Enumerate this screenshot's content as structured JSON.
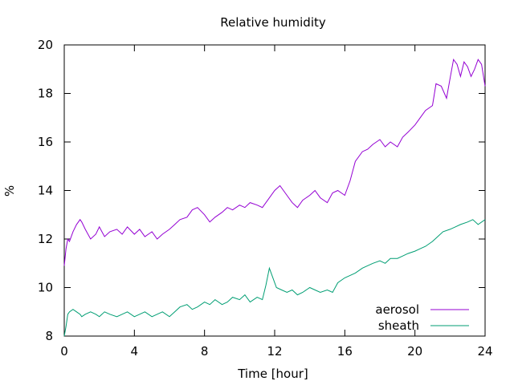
{
  "chart_data": {
    "type": "line",
    "title": "Relative humidity",
    "xlabel": "Time [hour]",
    "ylabel": "%",
    "xlim": [
      0,
      24
    ],
    "ylim": [
      8,
      20
    ],
    "xticks": [
      0,
      4,
      8,
      12,
      16,
      20,
      24
    ],
    "yticks": [
      8,
      10,
      12,
      14,
      16,
      18,
      20
    ],
    "grid": false,
    "legend_position": "bottom-right",
    "series": [
      {
        "name": "aerosol",
        "color": "#9400d3",
        "x": [
          0,
          0.1,
          0.2,
          0.3,
          0.5,
          0.7,
          0.9,
          1.0,
          1.2,
          1.5,
          1.8,
          2.0,
          2.3,
          2.6,
          3.0,
          3.3,
          3.6,
          4.0,
          4.3,
          4.6,
          5.0,
          5.3,
          5.6,
          6.0,
          6.3,
          6.6,
          7.0,
          7.3,
          7.6,
          8.0,
          8.3,
          8.6,
          9.0,
          9.3,
          9.6,
          10.0,
          10.3,
          10.6,
          11.0,
          11.3,
          11.6,
          12.0,
          12.3,
          12.6,
          13.0,
          13.3,
          13.6,
          14.0,
          14.3,
          14.6,
          15.0,
          15.3,
          15.6,
          16.0,
          16.3,
          16.6,
          17.0,
          17.3,
          17.6,
          18.0,
          18.3,
          18.6,
          19.0,
          19.3,
          19.6,
          20.0,
          20.3,
          20.6,
          21.0,
          21.2,
          21.5,
          21.8,
          22.0,
          22.2,
          22.4,
          22.6,
          22.8,
          23.0,
          23.2,
          23.4,
          23.6,
          23.8,
          24.0
        ],
        "y": [
          10.9,
          11.6,
          12.0,
          11.9,
          12.3,
          12.6,
          12.8,
          12.7,
          12.4,
          12.0,
          12.2,
          12.5,
          12.1,
          12.3,
          12.4,
          12.2,
          12.5,
          12.2,
          12.4,
          12.1,
          12.3,
          12.0,
          12.2,
          12.4,
          12.6,
          12.8,
          12.9,
          13.2,
          13.3,
          13.0,
          12.7,
          12.9,
          13.1,
          13.3,
          13.2,
          13.4,
          13.3,
          13.5,
          13.4,
          13.3,
          13.6,
          14.0,
          14.2,
          13.9,
          13.5,
          13.3,
          13.6,
          13.8,
          14.0,
          13.7,
          13.5,
          13.9,
          14.0,
          13.8,
          14.4,
          15.2,
          15.6,
          15.7,
          15.9,
          16.1,
          15.8,
          16.0,
          15.8,
          16.2,
          16.4,
          16.7,
          17.0,
          17.3,
          17.5,
          18.4,
          18.3,
          17.8,
          18.6,
          19.4,
          19.2,
          18.7,
          19.3,
          19.1,
          18.7,
          19.0,
          19.4,
          19.2,
          18.3
        ]
      },
      {
        "name": "sheath",
        "color": "#009e73",
        "x": [
          0,
          0.1,
          0.2,
          0.3,
          0.5,
          0.7,
          0.9,
          1.0,
          1.2,
          1.5,
          1.8,
          2.0,
          2.3,
          2.6,
          3.0,
          3.3,
          3.6,
          4.0,
          4.3,
          4.6,
          5.0,
          5.3,
          5.6,
          6.0,
          6.3,
          6.6,
          7.0,
          7.3,
          7.6,
          8.0,
          8.3,
          8.6,
          9.0,
          9.3,
          9.6,
          10.0,
          10.3,
          10.6,
          11.0,
          11.3,
          11.5,
          11.7,
          11.9,
          12.1,
          12.4,
          12.7,
          13.0,
          13.3,
          13.6,
          14.0,
          14.3,
          14.6,
          15.0,
          15.3,
          15.6,
          16.0,
          16.3,
          16.6,
          17.0,
          17.3,
          17.6,
          18.0,
          18.3,
          18.6,
          19.0,
          19.3,
          19.6,
          20.0,
          20.3,
          20.6,
          21.0,
          21.3,
          21.6,
          22.0,
          22.3,
          22.6,
          23.0,
          23.3,
          23.6,
          24.0
        ],
        "y": [
          8.0,
          8.4,
          8.9,
          9.0,
          9.1,
          9.0,
          8.9,
          8.8,
          8.9,
          9.0,
          8.9,
          8.8,
          9.0,
          8.9,
          8.8,
          8.9,
          9.0,
          8.8,
          8.9,
          9.0,
          8.8,
          8.9,
          9.0,
          8.8,
          9.0,
          9.2,
          9.3,
          9.1,
          9.2,
          9.4,
          9.3,
          9.5,
          9.3,
          9.4,
          9.6,
          9.5,
          9.7,
          9.4,
          9.6,
          9.5,
          10.1,
          10.8,
          10.4,
          10.0,
          9.9,
          9.8,
          9.9,
          9.7,
          9.8,
          10.0,
          9.9,
          9.8,
          9.9,
          9.8,
          10.2,
          10.4,
          10.5,
          10.6,
          10.8,
          10.9,
          11.0,
          11.1,
          11.0,
          11.2,
          11.2,
          11.3,
          11.4,
          11.5,
          11.6,
          11.7,
          11.9,
          12.1,
          12.3,
          12.4,
          12.5,
          12.6,
          12.7,
          12.8,
          12.6,
          12.8
        ]
      }
    ]
  }
}
